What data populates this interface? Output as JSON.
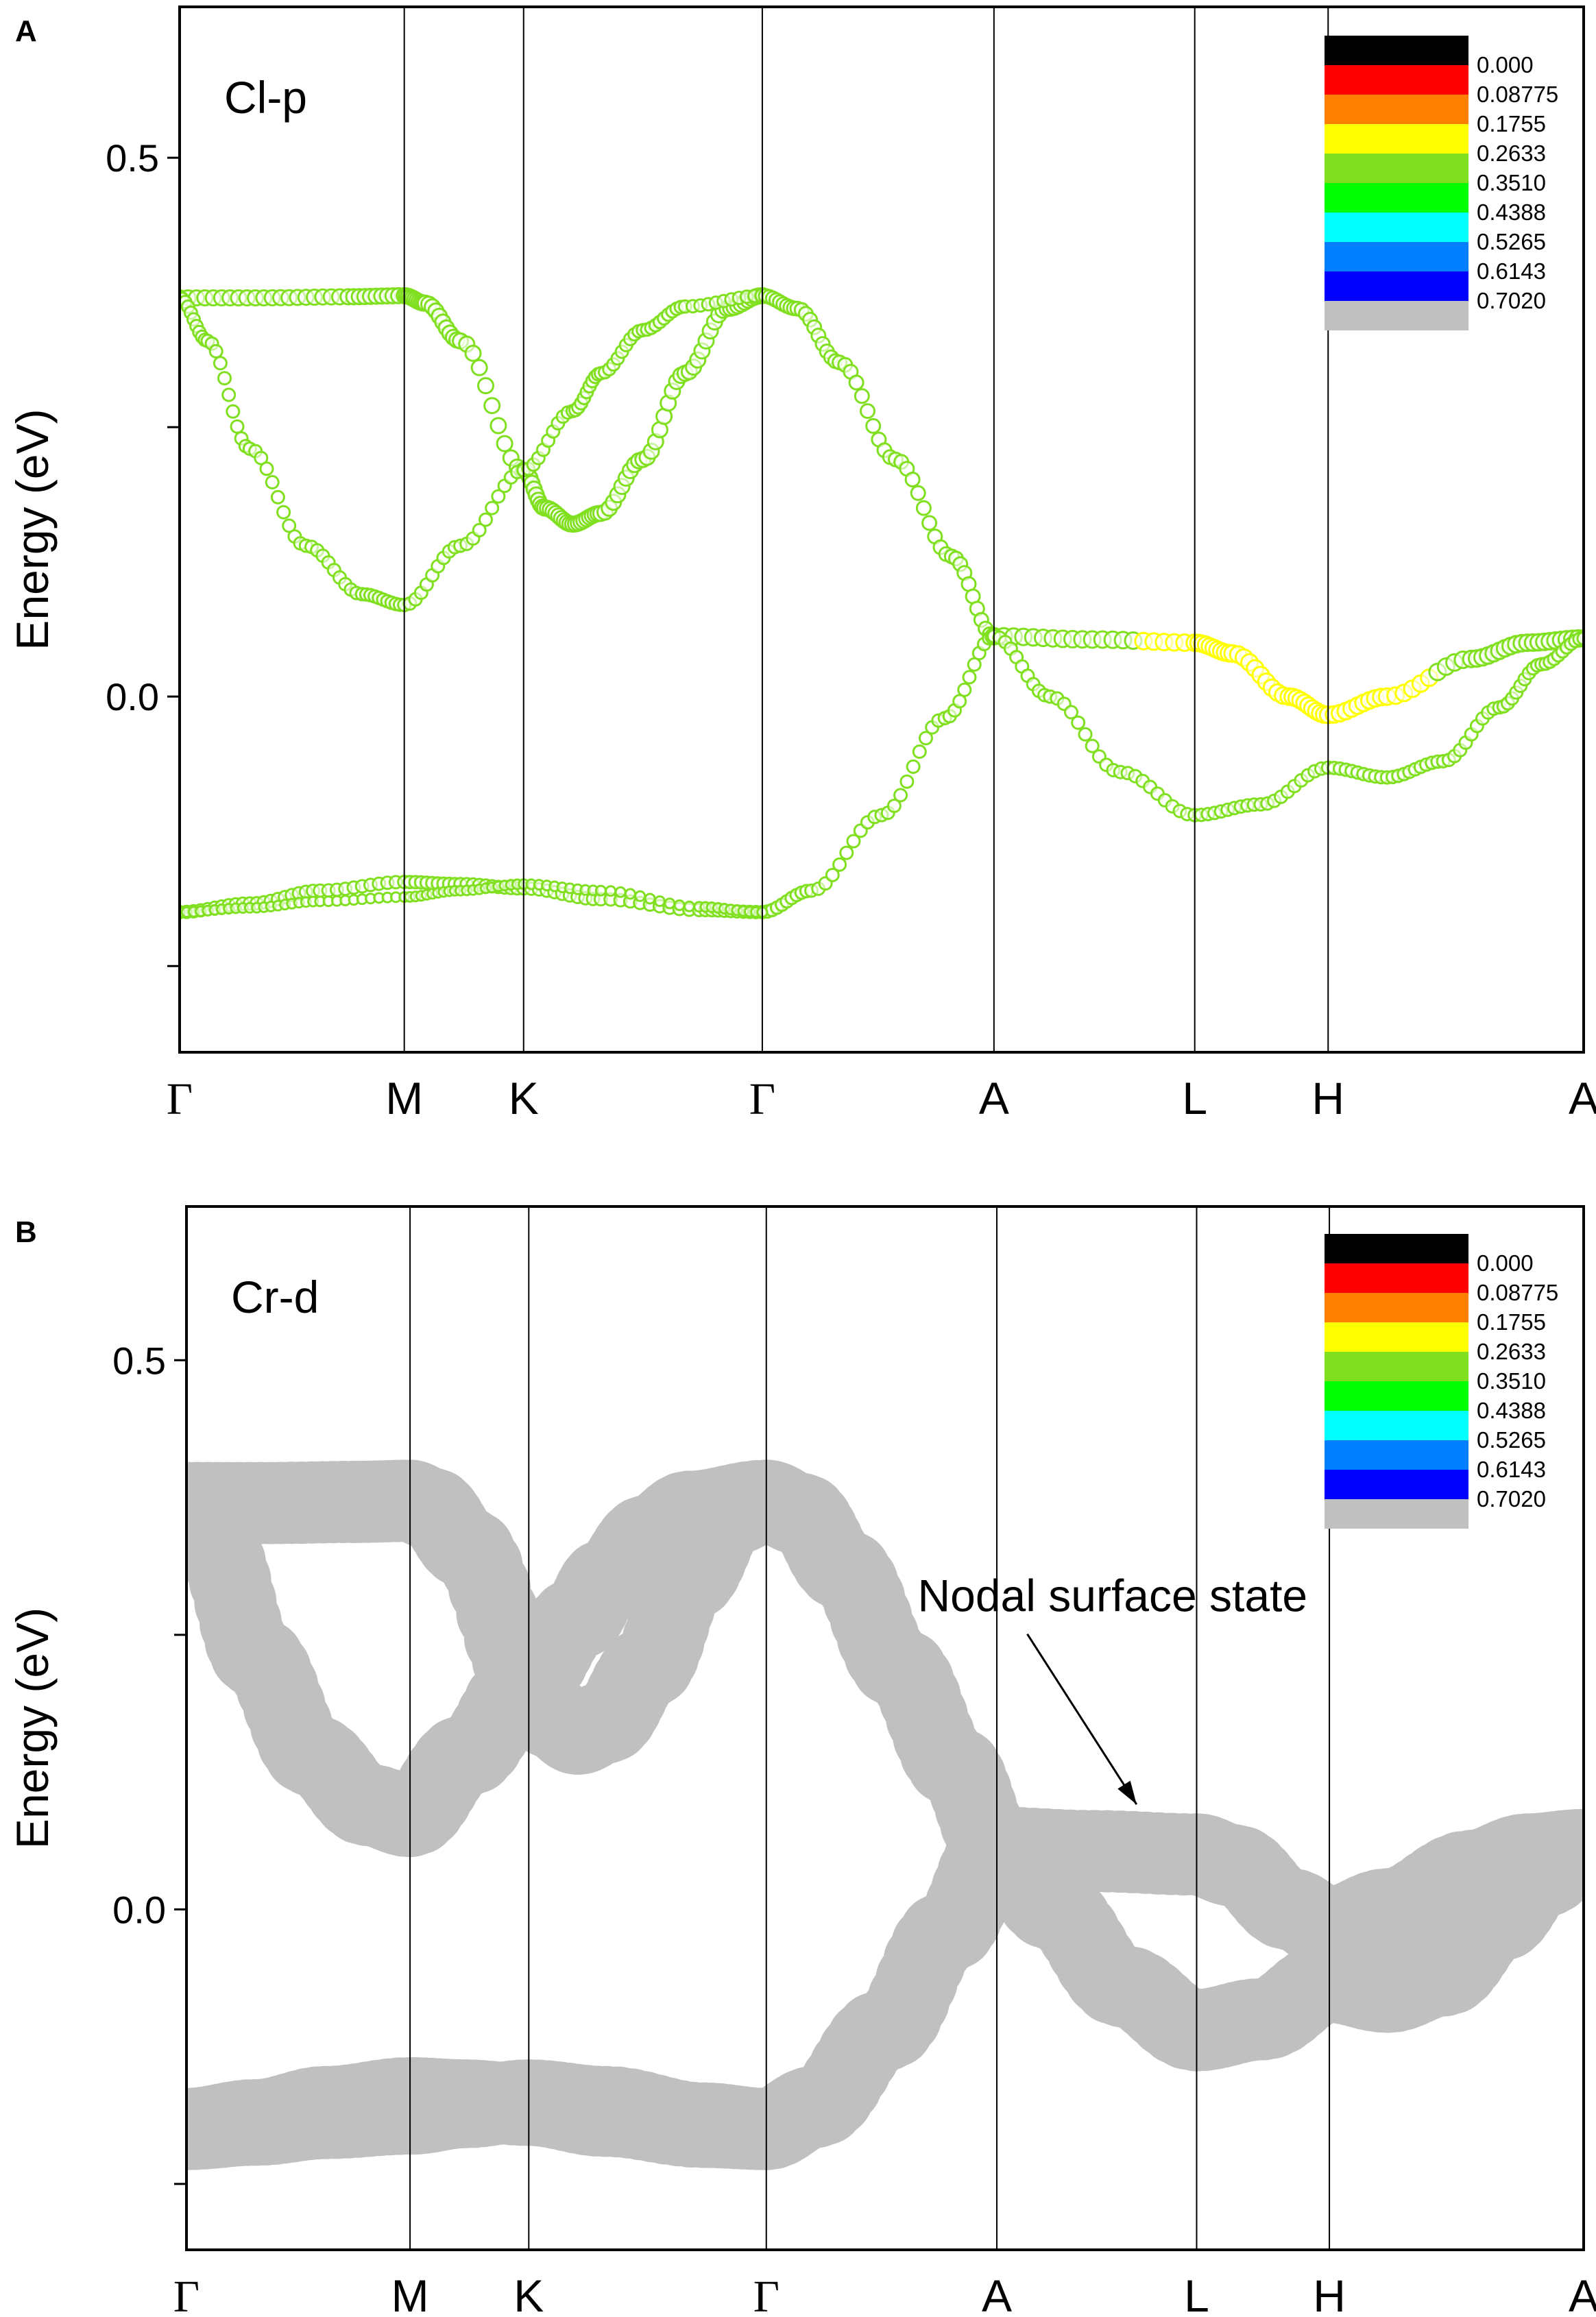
{
  "chart_data": [
    {
      "type": "line",
      "panel_label": "A",
      "orbital": "Cl-p",
      "ylabel": "Energy (eV)",
      "ylim": [
        -0.33,
        0.64
      ],
      "yticks": [
        -0.25,
        0.0,
        0.25,
        0.5
      ],
      "ytick_labels": [
        "",
        "0.0",
        "",
        "0.5"
      ],
      "kpath": [
        {
          "label": "Γ",
          "x": 0.0
        },
        {
          "label": "M",
          "x": 0.16
        },
        {
          "label": "K",
          "x": 0.245
        },
        {
          "label": "Γ",
          "x": 0.415
        },
        {
          "label": "A",
          "x": 0.58
        },
        {
          "label": "L",
          "x": 0.723
        },
        {
          "label": "H",
          "x": 0.818
        },
        {
          "label": "A",
          "x": 1.0
        }
      ],
      "legend_title": "",
      "colorbar": {
        "colors": [
          "#000000",
          "#ff0000",
          "#ff7f00",
          "#ffff00",
          "#80e020",
          "#00ff00",
          "#00ffff",
          "#0080ff",
          "#0000ff",
          "#c0c0c0"
        ],
        "labels": [
          "0.000",
          "0.08775",
          "0.1755",
          "0.2633",
          "0.3510",
          "0.4388",
          "0.5265",
          "0.6143",
          "0.7020"
        ]
      },
      "series": [
        {
          "points": [
            [
              0.0,
              0.37
            ],
            [
              0.06,
              0.37
            ],
            [
              0.12,
              0.371
            ],
            [
              0.16,
              0.372
            ],
            [
              0.175,
              0.365
            ],
            [
              0.2,
              0.33
            ],
            [
              0.245,
              0.21
            ],
            [
              0.26,
              0.175
            ],
            [
              0.28,
              0.16
            ],
            [
              0.3,
              0.17
            ],
            [
              0.33,
              0.22
            ],
            [
              0.36,
              0.3
            ],
            [
              0.39,
              0.36
            ],
            [
              0.415,
              0.372
            ]
          ],
          "weight": [
            0.26,
            0.26,
            0.26,
            0.26,
            0.26,
            0.24,
            0.2,
            0.19,
            0.19,
            0.19,
            0.2,
            0.22,
            0.24,
            0.26
          ],
          "size": 0.55
        },
        {
          "points": [
            [
              0.0,
              0.37
            ],
            [
              0.02,
              0.33
            ],
            [
              0.05,
              0.23
            ],
            [
              0.09,
              0.14
            ],
            [
              0.13,
              0.095
            ],
            [
              0.16,
              0.085
            ],
            [
              0.2,
              0.14
            ],
            [
              0.245,
              0.21
            ],
            [
              0.28,
              0.265
            ],
            [
              0.3,
              0.3
            ],
            [
              0.33,
              0.34
            ],
            [
              0.36,
              0.362
            ],
            [
              0.415,
              0.372
            ]
          ],
          "weight": [
            0.26,
            0.21,
            0.19,
            0.19,
            0.19,
            0.19,
            0.19,
            0.19,
            0.19,
            0.2,
            0.22,
            0.24,
            0.26
          ],
          "size": 0.45
        },
        {
          "points": [
            [
              0.415,
              0.372
            ],
            [
              0.44,
              0.36
            ],
            [
              0.47,
              0.31
            ],
            [
              0.51,
              0.22
            ],
            [
              0.55,
              0.13
            ],
            [
              0.58,
              0.056
            ]
          ],
          "weight": [
            0.26,
            0.25,
            0.23,
            0.2,
            0.19,
            0.18
          ],
          "size": 0.5
        },
        {
          "points": [
            [
              0.0,
              -0.2
            ],
            [
              0.05,
              -0.192
            ],
            [
              0.1,
              -0.18
            ],
            [
              0.16,
              -0.172
            ],
            [
              0.2,
              -0.174
            ],
            [
              0.245,
              -0.178
            ],
            [
              0.3,
              -0.188
            ],
            [
              0.37,
              -0.198
            ],
            [
              0.415,
              -0.2
            ],
            [
              0.45,
              -0.18
            ],
            [
              0.5,
              -0.11
            ],
            [
              0.545,
              -0.02
            ],
            [
              0.58,
              0.056
            ]
          ],
          "weight": [
            0.18,
            0.18,
            0.18,
            0.18,
            0.18,
            0.18,
            0.18,
            0.18,
            0.18,
            0.18,
            0.19,
            0.19,
            0.18
          ],
          "size": 0.45
        },
        {
          "points": [
            [
              0.0,
              -0.2
            ],
            [
              0.05,
              -0.196
            ],
            [
              0.1,
              -0.19
            ],
            [
              0.16,
              -0.186
            ],
            [
              0.2,
              -0.18
            ],
            [
              0.245,
              -0.174
            ],
            [
              0.3,
              -0.18
            ],
            [
              0.37,
              -0.195
            ],
            [
              0.415,
              -0.2
            ]
          ],
          "weight": [
            0.18,
            0.18,
            0.18,
            0.18,
            0.18,
            0.18,
            0.18,
            0.18,
            0.18
          ],
          "size": 0.35
        },
        {
          "points": [
            [
              0.58,
              0.056
            ],
            [
              0.65,
              0.053
            ],
            [
              0.723,
              0.05
            ],
            [
              0.75,
              0.04
            ],
            [
              0.79,
              0.0
            ],
            [
              0.818,
              -0.017
            ],
            [
              0.86,
              0.0
            ],
            [
              0.92,
              0.035
            ],
            [
              0.96,
              0.05
            ],
            [
              1.0,
              0.054
            ]
          ],
          "weight": [
            0.18,
            0.18,
            0.17,
            0.16,
            0.16,
            0.16,
            0.17,
            0.18,
            0.18,
            0.18
          ],
          "size": 0.6
        },
        {
          "points": [
            [
              0.58,
              0.056
            ],
            [
              0.62,
              0.0
            ],
            [
              0.67,
              -0.07
            ],
            [
              0.723,
              -0.11
            ],
            [
              0.77,
              -0.1
            ],
            [
              0.818,
              -0.066
            ],
            [
              0.86,
              -0.075
            ],
            [
              0.9,
              -0.06
            ],
            [
              0.94,
              -0.01
            ],
            [
              0.97,
              0.03
            ],
            [
              1.0,
              0.054
            ]
          ],
          "weight": [
            0.18,
            0.19,
            0.19,
            0.19,
            0.19,
            0.19,
            0.19,
            0.19,
            0.19,
            0.19,
            0.18
          ],
          "size": 0.45
        }
      ]
    },
    {
      "type": "line",
      "panel_label": "B",
      "orbital": "Cr-d",
      "ylabel": "Energy (eV)",
      "ylim": [
        -0.31,
        0.64
      ],
      "yticks": [
        -0.25,
        0.0,
        0.25,
        0.5
      ],
      "ytick_labels": [
        "",
        "0.0",
        "",
        "0.5"
      ],
      "kpath": [
        {
          "label": "Γ",
          "x": 0.0
        },
        {
          "label": "M",
          "x": 0.16
        },
        {
          "label": "K",
          "x": 0.245
        },
        {
          "label": "Γ",
          "x": 0.415
        },
        {
          "label": "A",
          "x": 0.58
        },
        {
          "label": "L",
          "x": 0.723
        },
        {
          "label": "H",
          "x": 0.818
        },
        {
          "label": "A",
          "x": 1.0
        }
      ],
      "annotation": {
        "text": "Nodal surface state",
        "target": [
          0.68,
          0.08
        ],
        "at": [
          0.592,
          0.285
        ]
      },
      "colorbar": {
        "colors": [
          "#000000",
          "#ff0000",
          "#ff7f00",
          "#ffff00",
          "#80e020",
          "#00ff00",
          "#00ffff",
          "#0080ff",
          "#0000ff",
          "#c0c0c0"
        ],
        "labels": [
          "0.000",
          "0.08775",
          "0.1755",
          "0.2633",
          "0.3510",
          "0.4388",
          "0.5265",
          "0.6143",
          "0.7020"
        ]
      },
      "series": [
        {
          "points": [
            [
              0.0,
              0.37
            ],
            [
              0.06,
              0.37
            ],
            [
              0.12,
              0.371
            ],
            [
              0.16,
              0.372
            ],
            [
              0.175,
              0.365
            ],
            [
              0.2,
              0.33
            ],
            [
              0.245,
              0.21
            ],
            [
              0.26,
              0.175
            ],
            [
              0.28,
              0.16
            ],
            [
              0.3,
              0.17
            ],
            [
              0.33,
              0.22
            ],
            [
              0.36,
              0.3
            ],
            [
              0.39,
              0.36
            ],
            [
              0.415,
              0.372
            ]
          ],
          "weight": [
            0.7,
            0.7,
            0.7,
            0.7,
            0.7,
            0.7,
            0.7,
            0.7,
            0.7,
            0.7,
            0.7,
            0.7,
            0.7,
            0.7
          ],
          "size": 1.0
        },
        {
          "points": [
            [
              0.0,
              0.37
            ],
            [
              0.02,
              0.33
            ],
            [
              0.05,
              0.23
            ],
            [
              0.09,
              0.14
            ],
            [
              0.13,
              0.095
            ],
            [
              0.16,
              0.085
            ],
            [
              0.2,
              0.14
            ],
            [
              0.245,
              0.21
            ],
            [
              0.28,
              0.265
            ],
            [
              0.3,
              0.3
            ],
            [
              0.33,
              0.34
            ],
            [
              0.36,
              0.362
            ],
            [
              0.415,
              0.372
            ]
          ],
          "weight": [
            0.7,
            0.7,
            0.7,
            0.7,
            0.7,
            0.7,
            0.7,
            0.7,
            0.7,
            0.7,
            0.7,
            0.7,
            0.7
          ],
          "size": 1.0
        },
        {
          "points": [
            [
              0.415,
              0.372
            ],
            [
              0.44,
              0.36
            ],
            [
              0.47,
              0.31
            ],
            [
              0.51,
              0.22
            ],
            [
              0.55,
              0.13
            ],
            [
              0.58,
              0.056
            ]
          ],
          "weight": [
            0.7,
            0.7,
            0.7,
            0.7,
            0.7,
            0.7
          ],
          "size": 1.0
        },
        {
          "points": [
            [
              0.0,
              -0.2
            ],
            [
              0.05,
              -0.192
            ],
            [
              0.1,
              -0.18
            ],
            [
              0.16,
              -0.172
            ],
            [
              0.2,
              -0.174
            ],
            [
              0.245,
              -0.178
            ],
            [
              0.3,
              -0.188
            ],
            [
              0.37,
              -0.198
            ],
            [
              0.415,
              -0.2
            ],
            [
              0.45,
              -0.18
            ],
            [
              0.5,
              -0.11
            ],
            [
              0.545,
              -0.02
            ],
            [
              0.58,
              0.056
            ]
          ],
          "weight": [
            0.7,
            0.7,
            0.7,
            0.7,
            0.7,
            0.7,
            0.7,
            0.7,
            0.7,
            0.7,
            0.7,
            0.7,
            0.7
          ],
          "size": 1.0
        },
        {
          "points": [
            [
              0.0,
              -0.2
            ],
            [
              0.05,
              -0.196
            ],
            [
              0.1,
              -0.19
            ],
            [
              0.16,
              -0.186
            ],
            [
              0.2,
              -0.18
            ],
            [
              0.245,
              -0.174
            ],
            [
              0.3,
              -0.18
            ],
            [
              0.37,
              -0.195
            ],
            [
              0.415,
              -0.2
            ]
          ],
          "weight": [
            0.7,
            0.7,
            0.7,
            0.7,
            0.7,
            0.7,
            0.7,
            0.7,
            0.7
          ],
          "size": 1.0
        },
        {
          "points": [
            [
              0.58,
              0.056
            ],
            [
              0.65,
              0.053
            ],
            [
              0.723,
              0.05
            ],
            [
              0.75,
              0.04
            ],
            [
              0.79,
              0.0
            ],
            [
              0.818,
              -0.017
            ],
            [
              0.86,
              0.0
            ],
            [
              0.92,
              0.035
            ],
            [
              0.96,
              0.05
            ],
            [
              1.0,
              0.054
            ]
          ],
          "weight": [
            0.7,
            0.7,
            0.7,
            0.7,
            0.7,
            0.7,
            0.7,
            0.7,
            0.7,
            0.7
          ],
          "size": 1.0
        },
        {
          "points": [
            [
              0.58,
              0.056
            ],
            [
              0.62,
              0.0
            ],
            [
              0.67,
              -0.07
            ],
            [
              0.723,
              -0.11
            ],
            [
              0.77,
              -0.1
            ],
            [
              0.818,
              -0.066
            ],
            [
              0.86,
              -0.075
            ],
            [
              0.9,
              -0.06
            ],
            [
              0.94,
              -0.01
            ],
            [
              0.97,
              0.03
            ],
            [
              1.0,
              0.054
            ]
          ],
          "weight": [
            0.7,
            0.7,
            0.7,
            0.7,
            0.7,
            0.7,
            0.7,
            0.7,
            0.7,
            0.7,
            0.7
          ],
          "size": 1.0
        }
      ]
    }
  ]
}
